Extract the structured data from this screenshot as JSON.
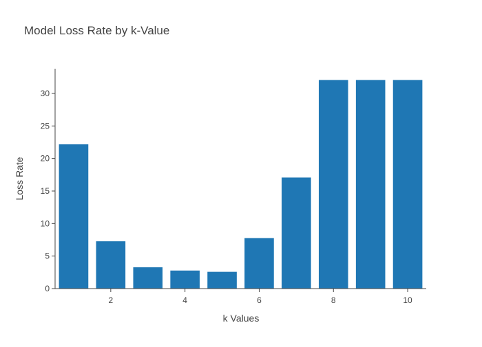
{
  "colors": {
    "bar": "#1f77b4",
    "axis": "#444444",
    "text": "#444444",
    "background": "#ffffff"
  },
  "chart_data": {
    "type": "bar",
    "title": "Model Loss Rate by k-Value",
    "xlabel": "k Values",
    "ylabel": "Loss Rate",
    "x": [
      1,
      2,
      3,
      4,
      5,
      6,
      7,
      8,
      9,
      10
    ],
    "values": [
      22.2,
      7.3,
      3.3,
      2.8,
      2.6,
      7.8,
      17.1,
      32.1,
      32.1,
      32.1
    ],
    "xlim": [
      0.5,
      10.5
    ],
    "ylim": [
      0,
      33.8
    ],
    "x_ticks": [
      "2",
      "4",
      "6",
      "8",
      "10"
    ],
    "y_ticks": [
      "0",
      "5",
      "10",
      "15",
      "20",
      "25",
      "30"
    ],
    "grid": false,
    "legend": false
  }
}
